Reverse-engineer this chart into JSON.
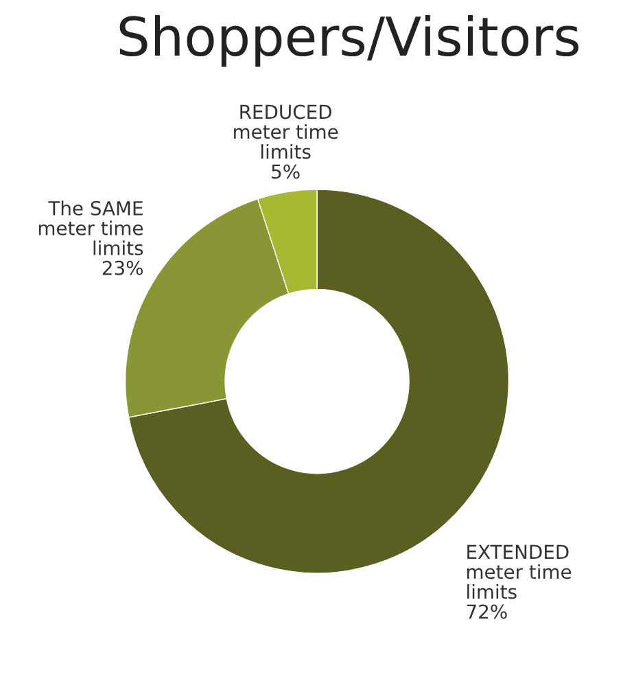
{
  "chart_data": {
    "type": "donut",
    "title": "Shoppers/Visitors",
    "categories": [
      "EXTENDED meter time limits",
      "The SAME meter time limits",
      "REDUCED meter time limits"
    ],
    "values": [
      72,
      23,
      5
    ],
    "colors": [
      "#5a5e20",
      "#8a9535",
      "#a8b832"
    ],
    "value_labels": [
      "72%",
      "23%",
      "5%"
    ],
    "legend": false
  }
}
